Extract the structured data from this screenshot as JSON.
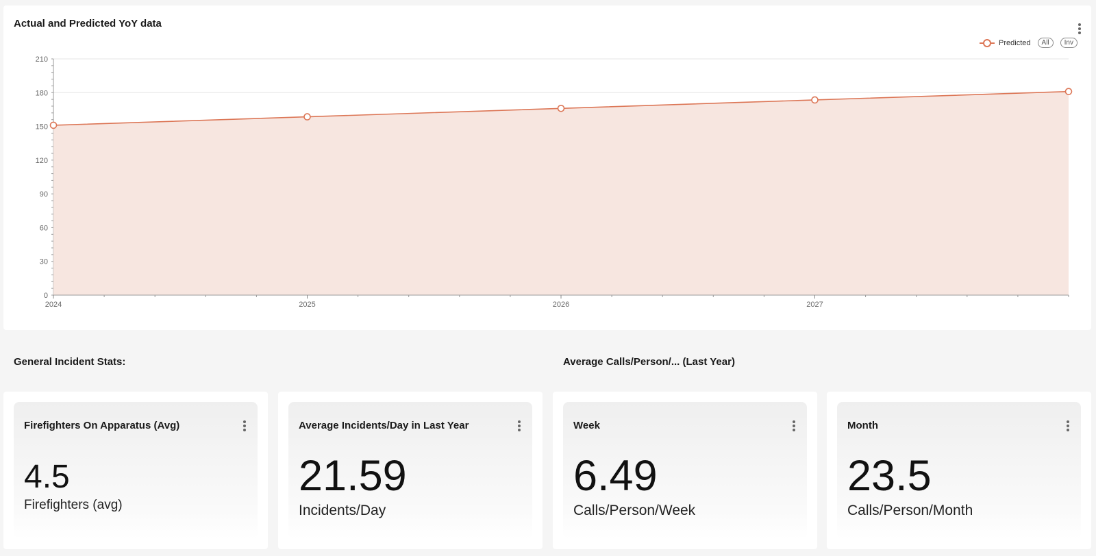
{
  "chart_card": {
    "title": "Actual and Predicted YoY data",
    "legend": {
      "series_name": "Predicted",
      "all_label": "All",
      "inv_label": "Inv"
    }
  },
  "chart_data": {
    "type": "area",
    "title": "Actual and Predicted YoY data",
    "series": [
      {
        "name": "Predicted",
        "x": [
          2024,
          2025,
          2026,
          2027,
          2028
        ],
        "values": [
          151,
          158.5,
          166,
          173.5,
          181
        ]
      }
    ],
    "x_ticks": [
      "2024",
      "2025",
      "2026",
      "2027"
    ],
    "y_ticks": [
      0,
      30,
      60,
      90,
      120,
      150,
      180,
      210
    ],
    "xlim": [
      2024,
      2028
    ],
    "ylim": [
      0,
      210
    ],
    "grid": true,
    "legend_position": "top-right",
    "colors": {
      "line": "#dc7656",
      "fill": "#f7e6e0"
    }
  },
  "sections": {
    "general": "General Incident Stats:",
    "average": "Average Calls/Person/... (Last Year)"
  },
  "stats": [
    {
      "title": "Firefighters On Apparatus (Avg)",
      "value": "4.5",
      "unit": "Firefighters (avg)"
    },
    {
      "title": "Average Incidents/Day in Last Year",
      "value": "21.59",
      "unit": "Incidents/Day"
    },
    {
      "title": "Week",
      "value": "6.49",
      "unit": "Calls/Person/Week"
    },
    {
      "title": "Month",
      "value": "23.5",
      "unit": "Calls/Person/Month"
    }
  ]
}
